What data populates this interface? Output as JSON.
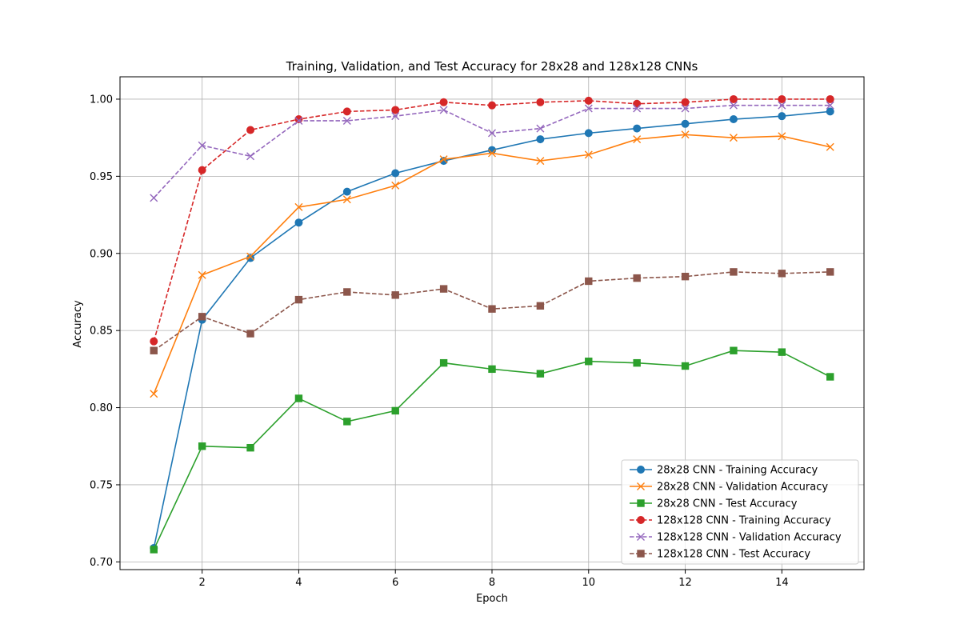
{
  "chart_data": {
    "type": "line",
    "title": "Training, Validation, and Test Accuracy for 28x28 and 128x128 CNNs",
    "xlabel": "Epoch",
    "ylabel": "Accuracy",
    "xlim": [
      0.3,
      15.7
    ],
    "ylim": [
      0.695,
      1.0145
    ],
    "xticks": [
      2,
      4,
      6,
      8,
      10,
      12,
      14
    ],
    "xtick_labels": [
      "2",
      "4",
      "6",
      "8",
      "10",
      "12",
      "14"
    ],
    "yticks": [
      0.7,
      0.75,
      0.8,
      0.85,
      0.9,
      0.95,
      1.0
    ],
    "ytick_labels": [
      "0.70",
      "0.75",
      "0.80",
      "0.85",
      "0.90",
      "0.95",
      "1.00"
    ],
    "grid": true,
    "legend_position": "lower-right",
    "x": [
      1,
      2,
      3,
      4,
      5,
      6,
      7,
      8,
      9,
      10,
      11,
      12,
      13,
      14,
      15
    ],
    "series": [
      {
        "name": "28x28 CNN - Training Accuracy",
        "color": "#1f77b4",
        "marker": "circle",
        "dash": "solid",
        "values": [
          0.709,
          0.857,
          0.897,
          0.92,
          0.94,
          0.952,
          0.96,
          0.967,
          0.974,
          0.978,
          0.981,
          0.984,
          0.987,
          0.989,
          0.992
        ]
      },
      {
        "name": "28x28 CNN - Validation Accuracy",
        "color": "#ff7f0e",
        "marker": "x",
        "dash": "solid",
        "values": [
          0.809,
          0.886,
          0.898,
          0.93,
          0.935,
          0.944,
          0.961,
          0.965,
          0.96,
          0.964,
          0.974,
          0.977,
          0.975,
          0.976,
          0.969
        ]
      },
      {
        "name": "28x28 CNN - Test Accuracy",
        "color": "#2ca02c",
        "marker": "square",
        "dash": "solid",
        "values": [
          0.708,
          0.775,
          0.774,
          0.806,
          0.791,
          0.798,
          0.829,
          0.825,
          0.822,
          0.83,
          0.829,
          0.827,
          0.837,
          0.836,
          0.82
        ]
      },
      {
        "name": "128x128 CNN - Training Accuracy",
        "color": "#d62728",
        "marker": "circle",
        "dash": "dashed",
        "values": [
          0.843,
          0.954,
          0.98,
          0.987,
          0.992,
          0.993,
          0.998,
          0.996,
          0.998,
          0.999,
          0.997,
          0.998,
          1.0,
          1.0,
          1.0
        ]
      },
      {
        "name": "128x128 CNN - Validation Accuracy",
        "color": "#9467bd",
        "marker": "x",
        "dash": "dashed",
        "values": [
          0.936,
          0.97,
          0.963,
          0.986,
          0.986,
          0.989,
          0.993,
          0.978,
          0.981,
          0.994,
          0.994,
          0.994,
          0.996,
          0.996,
          0.996
        ]
      },
      {
        "name": "128x128 CNN - Test Accuracy",
        "color": "#8c564b",
        "marker": "square",
        "dash": "dashed",
        "values": [
          0.837,
          0.859,
          0.848,
          0.87,
          0.875,
          0.873,
          0.877,
          0.864,
          0.866,
          0.882,
          0.884,
          0.885,
          0.888,
          0.887,
          0.888
        ]
      }
    ]
  }
}
